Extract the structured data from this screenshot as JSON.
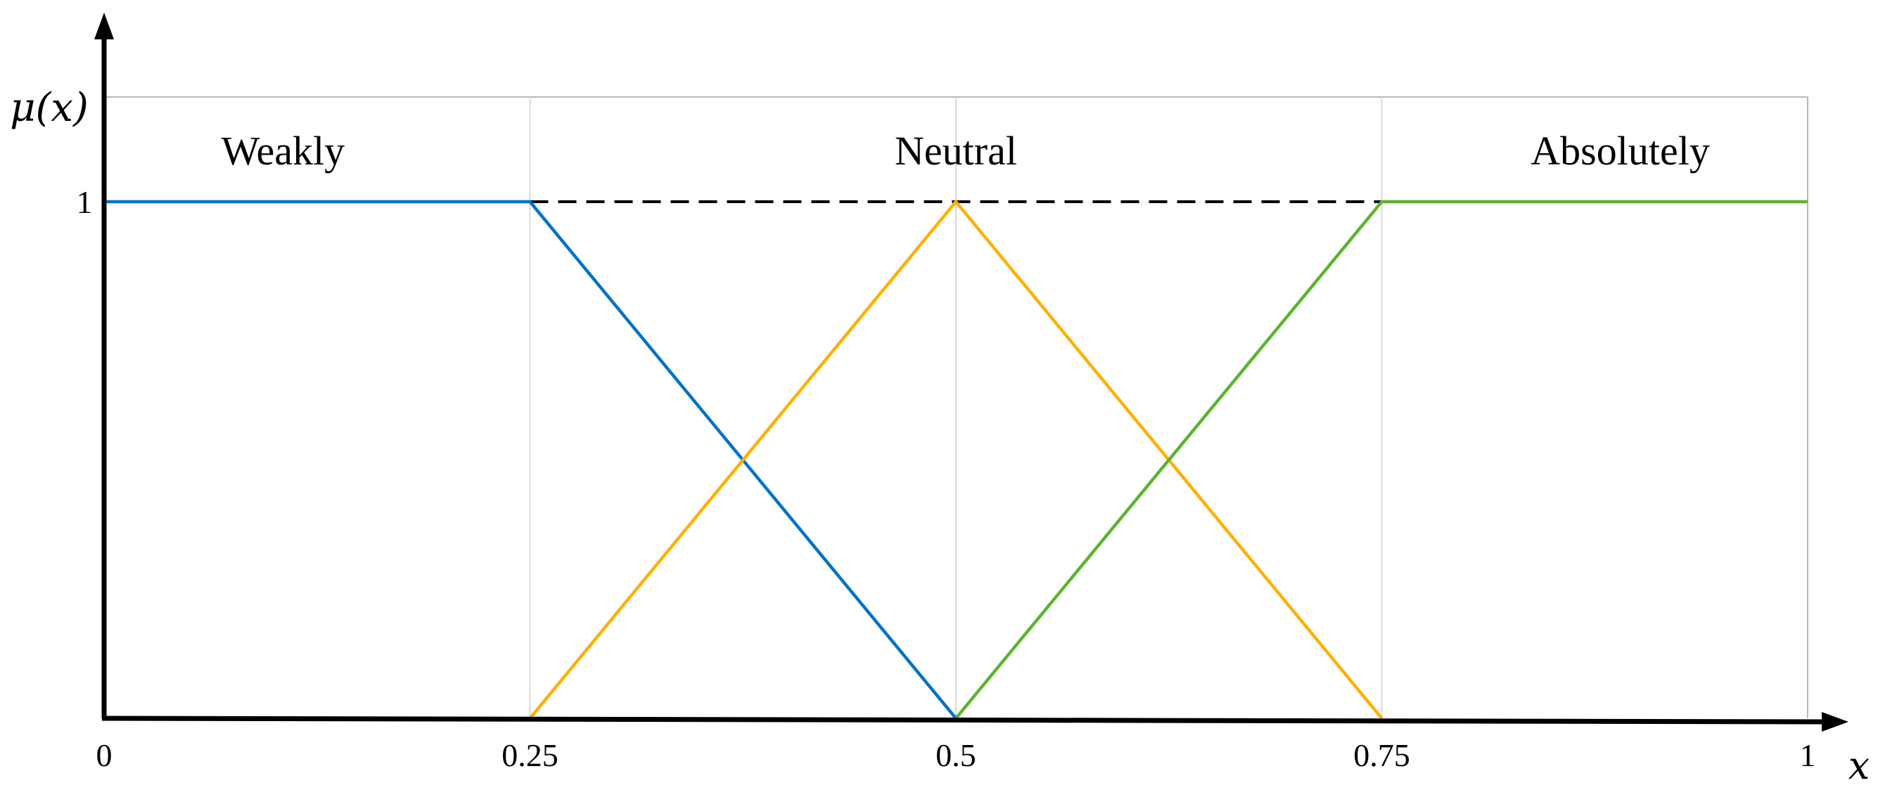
{
  "chart_data": {
    "type": "line",
    "xlabel": "x",
    "ylabel": "μ(x)",
    "xlim": [
      0,
      1
    ],
    "ylim": [
      0,
      1
    ],
    "x_ticks": [
      "0",
      "0.25",
      "0.5",
      "0.75",
      "1"
    ],
    "y_ticks": [
      "1"
    ],
    "grid": true,
    "series": [
      {
        "name": "Weakly",
        "color": "#0072C6",
        "points": [
          [
            0,
            1
          ],
          [
            0.25,
            1
          ],
          [
            0.5,
            0
          ]
        ]
      },
      {
        "name": "Neutral",
        "color": "#FFB000",
        "points": [
          [
            0.25,
            0
          ],
          [
            0.5,
            1
          ],
          [
            0.75,
            0
          ]
        ]
      },
      {
        "name": "Absolutely",
        "color": "#5CB42E",
        "points": [
          [
            0.5,
            0
          ],
          [
            0.75,
            1
          ],
          [
            1,
            1
          ]
        ]
      }
    ],
    "reference_line": {
      "style": "dashed",
      "color": "#000000",
      "points": [
        [
          0.25,
          1
        ],
        [
          0.75,
          1
        ]
      ]
    }
  }
}
